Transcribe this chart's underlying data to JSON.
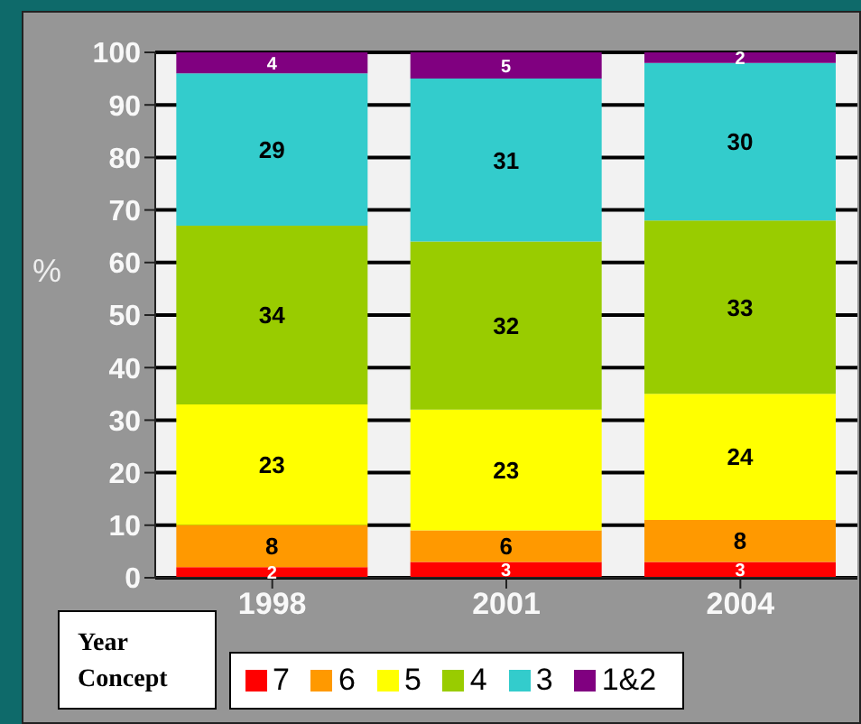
{
  "chart_data": {
    "type": "bar",
    "stacked": true,
    "categories": [
      "1998",
      "2001",
      "2004"
    ],
    "series": [
      {
        "name": "7",
        "color": "#ff0000",
        "values": [
          2,
          3,
          3
        ]
      },
      {
        "name": "6",
        "color": "#ff9900",
        "values": [
          8,
          6,
          8
        ]
      },
      {
        "name": "5",
        "color": "#ffff00",
        "values": [
          23,
          23,
          24
        ]
      },
      {
        "name": "4",
        "color": "#99cc00",
        "values": [
          34,
          32,
          33
        ]
      },
      {
        "name": "3",
        "color": "#33cccc",
        "values": [
          29,
          31,
          30
        ]
      },
      {
        "name": "1&2",
        "color": "#800080",
        "values": [
          4,
          5,
          2
        ]
      }
    ],
    "ylabel": "%",
    "xlabel": "Year",
    "legend_title": "Concept",
    "ylim": [
      0,
      100
    ],
    "yticks": [
      0,
      10,
      20,
      30,
      40,
      50,
      60,
      70,
      80,
      90,
      100
    ],
    "grid": "y",
    "data_labels": true,
    "legend": "bottom"
  }
}
